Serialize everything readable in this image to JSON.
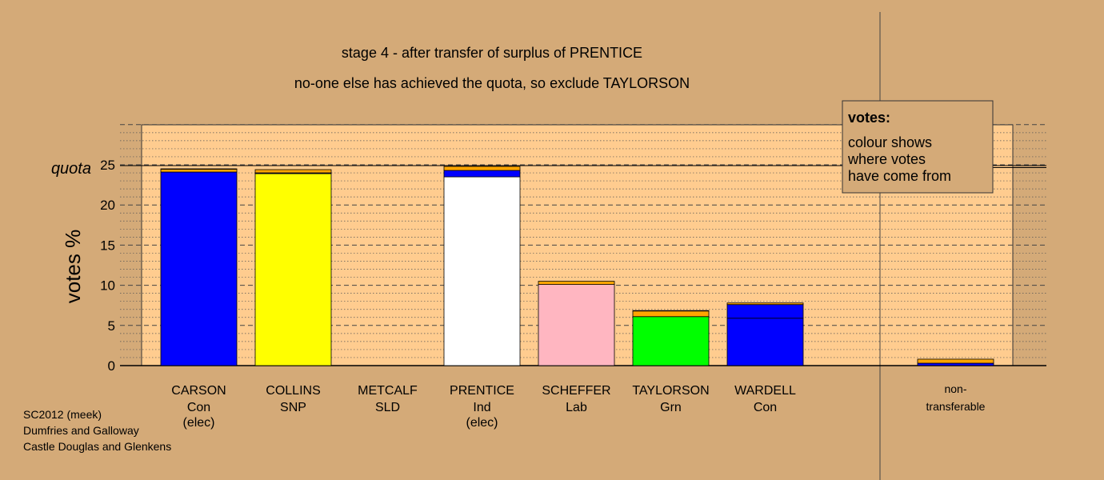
{
  "chart_data": {
    "type": "bar",
    "title": "stage 4 - after transfer of surplus of PRENTICE",
    "subtitle": "no-one else has achieved the quota, so exclude TAYLORSON",
    "ylabel": "votes %",
    "ylim": [
      0,
      30
    ],
    "yticks": [
      "0",
      "5",
      "10",
      "15",
      "20",
      "25"
    ],
    "quota": 24.9,
    "quota_label": "quota",
    "grid": true,
    "candidates": [
      {
        "name": "CARSON",
        "party": "Con",
        "note": "(elec)",
        "segments": [
          {
            "value": 24.1,
            "color": "#0000FF"
          },
          {
            "value": 0.35,
            "color": "#FFA500"
          },
          {
            "value": 0.05,
            "color": "#FFFF00"
          }
        ]
      },
      {
        "name": "COLLINS",
        "party": "SNP",
        "note": "",
        "segments": [
          {
            "value": 23.9,
            "color": "#FFFF00"
          },
          {
            "value": 0.1,
            "color": "#0000FF"
          },
          {
            "value": 0.4,
            "color": "#FFA500"
          }
        ]
      },
      {
        "name": "METCALF",
        "party": "SLD",
        "note": "",
        "segments": []
      },
      {
        "name": "PRENTICE",
        "party": "Ind",
        "note": "(elec)",
        "segments": [
          {
            "value": 23.5,
            "color": "#FFFFFF"
          },
          {
            "value": 0.8,
            "color": "#0000FF"
          },
          {
            "value": 0.5,
            "color": "#FFA500"
          }
        ]
      },
      {
        "name": "SCHEFFER",
        "party": "Lab",
        "note": "",
        "segments": [
          {
            "value": 10.1,
            "color": "#FFB6C1"
          },
          {
            "value": 0.4,
            "color": "#FFA500"
          }
        ]
      },
      {
        "name": "TAYLORSON",
        "party": "Grn",
        "note": "",
        "segments": [
          {
            "value": 6.1,
            "color": "#00FF00"
          },
          {
            "value": 0.7,
            "color": "#FFA500"
          },
          {
            "value": 0.05,
            "color": "#0000FF"
          }
        ]
      },
      {
        "name": "WARDELL",
        "party": "Con",
        "note": "",
        "segments": [
          {
            "value": 5.9,
            "color": "#0000FF"
          },
          {
            "value": 1.7,
            "color": "#0000FF"
          },
          {
            "value": 0.2,
            "color": "#FFA500"
          }
        ]
      }
    ],
    "nontransferable": {
      "label_line1": "non-",
      "label_line2": "transferable",
      "segments": [
        {
          "value": 0.3,
          "color": "#0000FF"
        },
        {
          "value": 0.5,
          "color": "#FFA500"
        }
      ]
    },
    "legend": {
      "title": "votes:",
      "lines": [
        "colour shows",
        "where votes",
        "have come from"
      ],
      "placement": "top-right"
    }
  },
  "footer": [
    "SC2012 (meek)",
    "Dumfries and Galloway",
    "Castle Douglas and Glenkens"
  ],
  "colors": {
    "background": "#D4AA78",
    "plot_area": "#FFCC8F"
  }
}
